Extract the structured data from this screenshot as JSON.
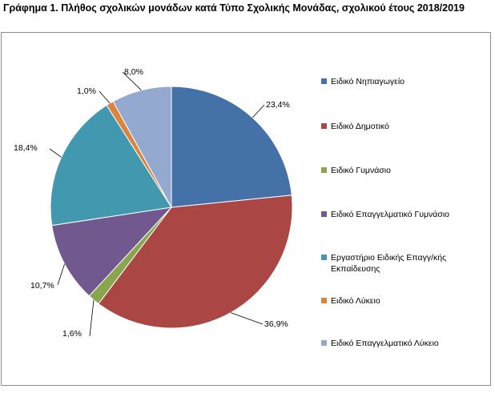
{
  "title": "Γράφημα 1. Πλήθος σχολικών μονάδων κατά Τύπο Σχολικής Μονάδας, σχολικού έτους 2018/2019",
  "chart_data": {
    "type": "pie",
    "categories": [
      "Ειδικό Νηπιαγωγείο",
      "Ειδικό Δημοτικό",
      "Ειδικό Γυμνάσιο",
      "Ειδικό Επαγγελματικό Γυμνάσιο",
      "Εργαστήριο Ειδικής Επαγγ/κής Εκπαίδευσης",
      "Ειδικό Λύκειο",
      "Ειδικό Επαγγελματικό Λύκειο"
    ],
    "values": [
      23.4,
      36.9,
      1.6,
      10.7,
      18.4,
      1.0,
      8.0
    ],
    "labels": [
      "23,4%",
      "36,9%",
      "1,6%",
      "10,7%",
      "18,4%",
      "1,0%",
      "8,0%"
    ],
    "colors": [
      "#4472A8",
      "#AA4643",
      "#89A54E",
      "#71588F",
      "#4198AF",
      "#DB843D",
      "#93A9CF"
    ],
    "legend_position": "right"
  }
}
